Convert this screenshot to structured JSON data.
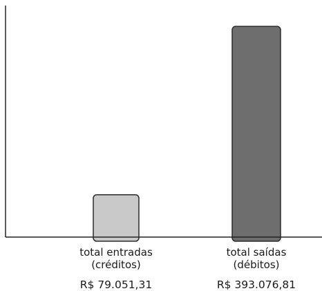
{
  "chart_data": {
    "type": "bar",
    "title": "",
    "xlabel": "",
    "ylabel": "",
    "grid": false,
    "legend": "none",
    "ylim": [
      0,
      432000
    ],
    "categories": [
      {
        "line1": "total entradas",
        "line2": "(créditos)"
      },
      {
        "line1": "total saídas",
        "line2": "(débitos)"
      }
    ],
    "values": [
      79051.31,
      393076.81
    ],
    "value_labels": [
      "R$ 79.051,31",
      "R$ 393.076,81"
    ],
    "colors": [
      "#c9c9c9",
      "#6e6e6e"
    ],
    "outline_color": "#2b2b2b",
    "axis_color": "#222222"
  }
}
